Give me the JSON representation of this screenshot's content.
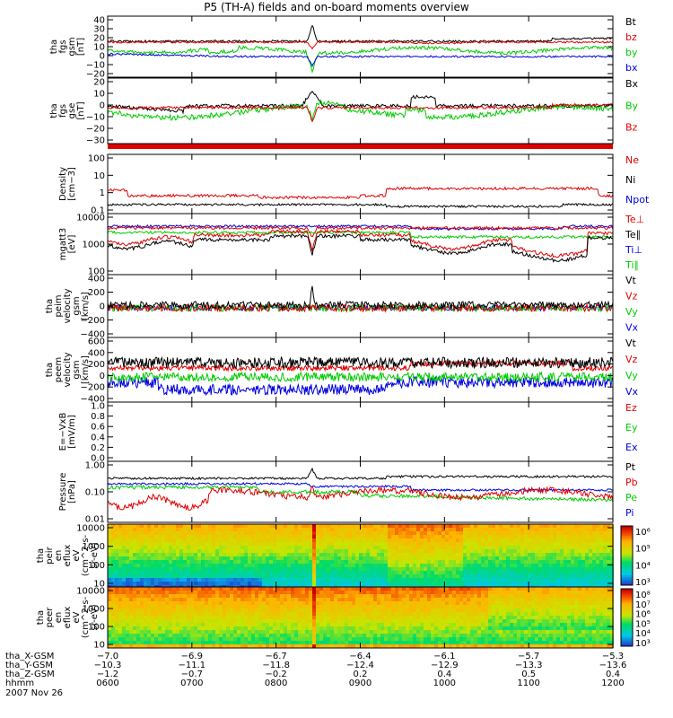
{
  "title": "P5 (TH-A) fields and on-board moments overview",
  "date": "2007 Nov 26",
  "colors": {
    "black": "#000000",
    "red": "#e00000",
    "green": "#00cc00",
    "blue": "#0000e0"
  },
  "chart_data": [
    {
      "type": "line",
      "id": "fgs1",
      "ylabel": [
        "tha",
        "fgs",
        "gsm",
        "[nT]"
      ],
      "yticks": [
        "40",
        "30",
        "20",
        "10",
        "0",
        "−10",
        "−20"
      ],
      "ylim": [
        -20,
        40
      ],
      "legend": [
        "Bt",
        "bz",
        "by",
        "bx"
      ],
      "legend_colors": [
        "black",
        "red",
        "green",
        "blue"
      ],
      "series": [
        {
          "values_desc": "Bt ~14 nT, spike ~30 at 0843"
        }
      ]
    },
    {
      "type": "line",
      "id": "fgs2",
      "ylabel": [
        "tha",
        "fgs",
        "gse",
        "[nT]"
      ],
      "yticks": [
        "20",
        "10",
        "0",
        "−10",
        "−20",
        "−30"
      ],
      "ylim": [
        -35,
        22
      ],
      "legend": [
        "Bx",
        "By",
        "Bz"
      ],
      "legend_colors": [
        "black",
        "green",
        "red"
      ]
    },
    {
      "type": "line",
      "id": "density",
      "ylabel": [
        "Density",
        "[cm−3]"
      ],
      "yticks": [
        "100",
        "10",
        "1",
        "0.1"
      ],
      "ylim_log": [
        -1.3,
        2.2
      ],
      "legend": [
        "Ne",
        "Ni",
        "Npot"
      ],
      "legend_colors": [
        "red",
        "black",
        "blue"
      ]
    },
    {
      "type": "line",
      "id": "temp",
      "ylabel": [
        "mgatt3",
        "[eV]"
      ],
      "yticks": [
        "10000",
        "1000",
        "100"
      ],
      "ylim_log": [
        1.6,
        4.1
      ],
      "legend": [
        "Te⊥",
        "Te∥",
        "Ti⊥",
        "Ti∥"
      ],
      "legend_colors": [
        "red",
        "black",
        "blue",
        "green"
      ]
    },
    {
      "type": "line",
      "id": "peim",
      "ylabel": [
        "tha",
        "peim",
        "velocity",
        "gsm",
        "[km/s]"
      ],
      "yticks": [
        "400",
        "200",
        "0",
        "−200",
        "−400"
      ],
      "ylim": [
        -400,
        400
      ],
      "legend": [
        "Vt",
        "Vz",
        "Vy",
        "Vx"
      ],
      "legend_colors": [
        "black",
        "red",
        "green",
        "blue"
      ]
    },
    {
      "type": "line",
      "id": "peem",
      "ylabel": [
        "tha",
        "peem",
        "velocity",
        "gsm",
        "[km/s]"
      ],
      "yticks": [
        "600",
        "400",
        "200",
        "0",
        "−200",
        "−400"
      ],
      "ylim": [
        -450,
        650
      ],
      "legend": [
        "Vt",
        "Vz",
        "Vy",
        "Vx"
      ],
      "legend_colors": [
        "black",
        "red",
        "green",
        "blue"
      ]
    },
    {
      "type": "line",
      "id": "efield",
      "ylabel": [
        "E=−VxB",
        "[mV/m]"
      ],
      "yticks": [
        "1.0",
        "0.8",
        "0.6",
        "0.4",
        "0.2",
        "0.0"
      ],
      "ylim": [
        0,
        1
      ],
      "legend": [
        "Ez",
        "Ey",
        "Ex"
      ],
      "legend_colors": [
        "red",
        "green",
        "blue"
      ]
    },
    {
      "type": "line",
      "id": "pressure",
      "ylabel": [
        "Pressure",
        "[nPa]"
      ],
      "yticks": [
        "1.00",
        "0.10",
        "0.01"
      ],
      "ylim_log": [
        -2,
        0
      ],
      "legend": [
        "Pt",
        "Pb",
        "Pe",
        "Pi"
      ],
      "legend_colors": [
        "black",
        "red",
        "green",
        "blue"
      ]
    },
    {
      "type": "heatmap",
      "id": "peir",
      "ylabel": [
        "tha",
        "peir",
        "en",
        "eflux",
        "eV",
        "(cm^2-s-",
        "sr-eV)"
      ],
      "yticks": [
        "10000",
        "1000",
        "100",
        "10"
      ],
      "cbar_ticks": [
        "10⁶",
        "10⁵",
        "10⁴",
        "10³"
      ]
    },
    {
      "type": "heatmap",
      "id": "peer",
      "ylabel": [
        "tha",
        "peer",
        "en",
        "eflux",
        "eV",
        "(cm^2-s-",
        "sr-eV)"
      ],
      "yticks": [
        "10000",
        "1000",
        "100",
        "10"
      ],
      "cbar_ticks": [
        "10⁸",
        "10⁷",
        "10⁶",
        "10⁵",
        "10⁴",
        "10³"
      ]
    }
  ],
  "x_axis": {
    "labels": [
      "tha_X-GSM",
      "tha_Y-GSM",
      "tha_Z-GSM",
      "hhmm"
    ],
    "ticks": [
      {
        "x": [
          "−7.0",
          "−10.3",
          "−1.2",
          "0600"
        ]
      },
      {
        "x": [
          "−6.9",
          "−11.1",
          "−0.7",
          "0700"
        ]
      },
      {
        "x": [
          "−6.7",
          "−11.8",
          "−0.2",
          "0800"
        ]
      },
      {
        "x": [
          "−6.4",
          "−12.4",
          "0.2",
          "0900"
        ]
      },
      {
        "x": [
          "−6.1",
          "−12.9",
          "0.4",
          "1000"
        ]
      },
      {
        "x": [
          "−5.7",
          "−13.3",
          "0.5",
          "1100"
        ]
      },
      {
        "x": [
          "−5.3",
          "−13.6",
          "0.4",
          "1200"
        ]
      }
    ]
  }
}
